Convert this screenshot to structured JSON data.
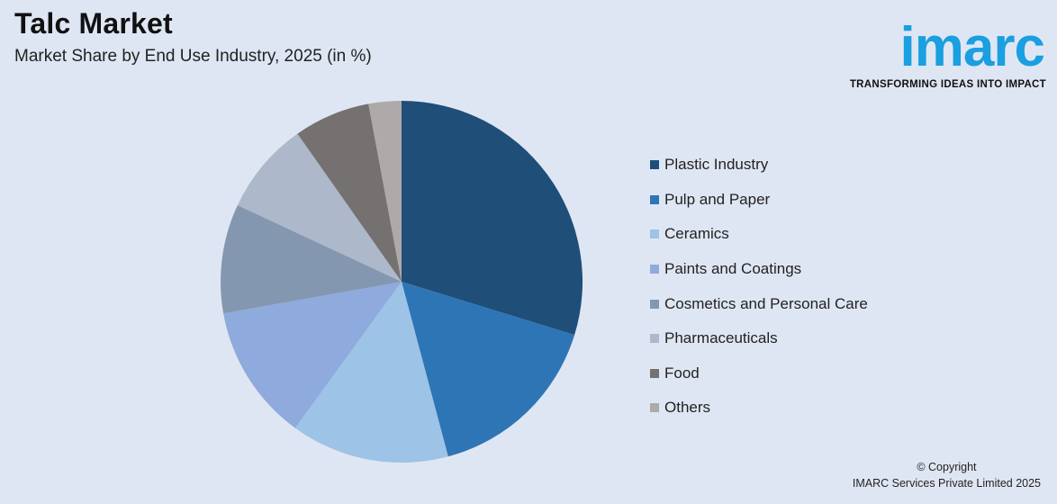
{
  "header": {
    "title": "Talc Market",
    "subtitle": "Market Share by End Use Industry, 2025 (in %)"
  },
  "logo": {
    "word": "imarc",
    "tagline": "TRANSFORMING IDEAS INTO IMPACT",
    "color": "#1a9fe0"
  },
  "footer": {
    "line1": "© Copyright",
    "line2": "IMARC Services Private Limited 2025"
  },
  "chart_data": {
    "type": "pie",
    "title": "Market Share by End Use Industry, 2025 (in %)",
    "legend_position": "right",
    "start_angle_deg": 0,
    "direction": "clockwise",
    "categories": [
      "Plastic Industry",
      "Pulp and Paper",
      "Ceramics",
      "Paints and Coatings",
      "Cosmetics and Personal Care",
      "Pharmaceuticals",
      "Food",
      "Others"
    ],
    "values": [
      30.5,
      16.5,
      14.5,
      12.5,
      10.0,
      8.5,
      7.0,
      3.0
    ],
    "colors": [
      "#1f4e79",
      "#2e75b6",
      "#9dc3e6",
      "#8faadc",
      "#8497b0",
      "#adb9ca",
      "#767171",
      "#aeaaaa"
    ]
  }
}
